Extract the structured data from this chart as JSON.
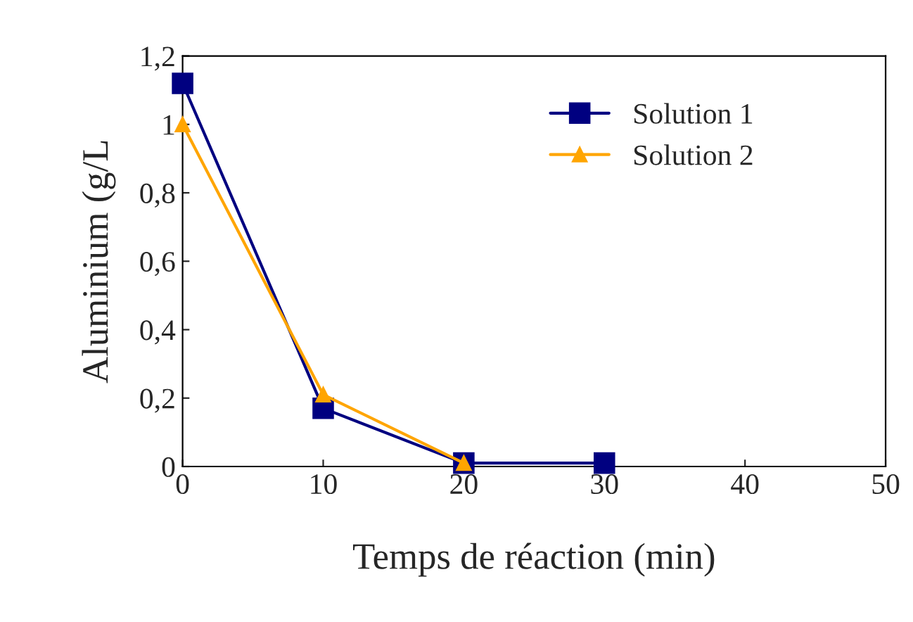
{
  "chart_data": {
    "type": "line",
    "xlabel": "Temps de réaction (min)",
    "ylabel": "Aluminium (g/L",
    "series": [
      {
        "name": "Solution 1",
        "color": "#000080",
        "marker": "square",
        "x": [
          0,
          10,
          20,
          30
        ],
        "values": [
          1.12,
          0.17,
          0.01,
          0.01
        ]
      },
      {
        "name": "Solution 2",
        "color": "#ffa500",
        "marker": "triangle",
        "x": [
          0,
          10,
          20
        ],
        "values": [
          1.0,
          0.21,
          0.01
        ]
      }
    ],
    "xlim": [
      0,
      50
    ],
    "xticks": [
      0,
      10,
      20,
      30,
      40,
      50
    ],
    "ylim": [
      0,
      1.2
    ],
    "yticks": [
      {
        "value": 0,
        "label": "0"
      },
      {
        "value": 0.2,
        "label": "0,2"
      },
      {
        "value": 0.4,
        "label": "0,4"
      },
      {
        "value": 0.6,
        "label": "0,6"
      },
      {
        "value": 0.8,
        "label": "0,8"
      },
      {
        "value": 1,
        "label": "1"
      },
      {
        "value": 1.2,
        "label": "1,2"
      }
    ],
    "grid": false,
    "legend": "top right"
  }
}
